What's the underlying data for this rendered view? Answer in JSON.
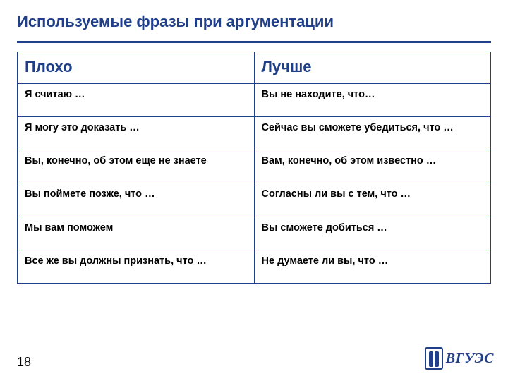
{
  "brand_color": "#1f3f8a",
  "title": "Используемые фразы при аргументации",
  "table": {
    "columns": [
      "Плохо",
      "Лучше"
    ],
    "rows": [
      [
        "Я считаю …",
        "Вы не находите, что…"
      ],
      [
        "Я могу это доказать …",
        "Сейчас вы сможете убедиться, что …"
      ],
      [
        "Вы, конечно, об этом еще не знаете",
        "Вам, конечно, об этом известно …"
      ],
      [
        "Вы поймете позже, что …",
        "Согласны ли вы с тем, что …"
      ],
      [
        "Мы вам поможем",
        "Вы сможете добиться …"
      ],
      [
        "Все же вы должны признать, что …",
        "Не думаете ли вы, что …"
      ]
    ],
    "header_fontsize": 22,
    "cell_fontsize": 14.5,
    "border_color": "#1f3f8a",
    "header_text_color": "#1f3f8a",
    "cell_text_color": "#000000"
  },
  "page_number": "18",
  "logo_text": "ВГУЭС"
}
